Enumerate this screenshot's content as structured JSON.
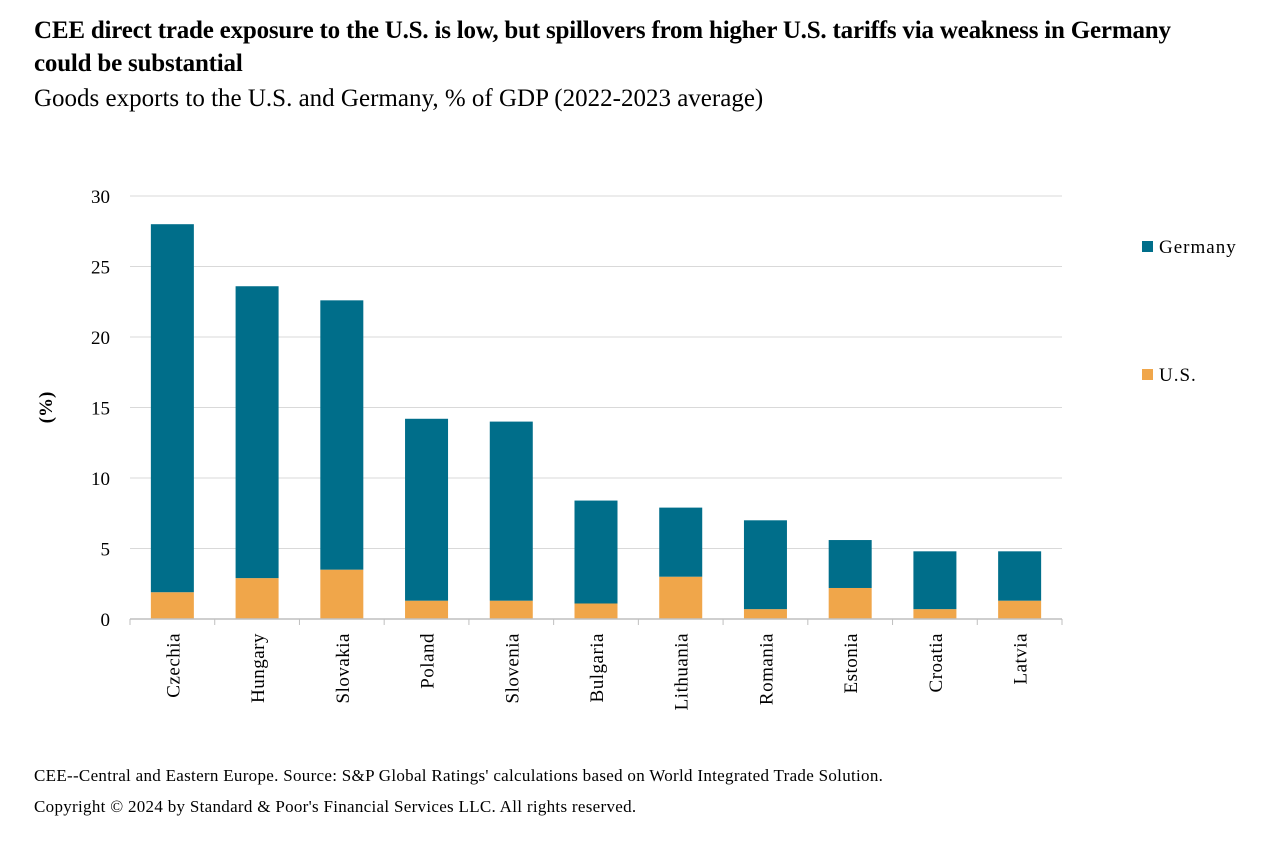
{
  "header": {
    "title": "CEE direct trade exposure to the U.S. is low, but spillovers from higher U.S. tariffs via weakness in Germany could be substantial",
    "subtitle": "Goods exports to the U.S. and Germany, % of GDP (2022-2023 average)"
  },
  "footer": {
    "note": "CEE--Central and Eastern Europe. Source: S&P Global Ratings' calculations based on World Integrated Trade Solution.",
    "copyright": "Copyright © 2024 by Standard & Poor's Financial Services LLC. All rights reserved."
  },
  "chart_data": {
    "type": "bar",
    "stacked": true,
    "title": "CEE direct trade exposure to the U.S. is low, but spillovers from higher U.S. tariffs via weakness in Germany could be substantial",
    "subtitle": "Goods exports to the U.S. and Germany, % of GDP (2022-2023 average)",
    "xlabel": "",
    "ylabel": "(%)",
    "ylim": [
      0,
      30
    ],
    "yticks": [
      0,
      5,
      10,
      15,
      20,
      25,
      30
    ],
    "grid": true,
    "legend_position": "right",
    "categories": [
      "Czechia",
      "Hungary",
      "Slovakia",
      "Poland",
      "Slovenia",
      "Bulgaria",
      "Lithuania",
      "Romania",
      "Estonia",
      "Croatia",
      "Latvia"
    ],
    "series": [
      {
        "name": "U.S.",
        "color": "#F0A64A",
        "values": [
          1.9,
          2.9,
          3.5,
          1.3,
          1.3,
          1.1,
          3.0,
          0.7,
          2.2,
          0.7,
          1.3
        ]
      },
      {
        "name": "Germany",
        "color": "#006E8A",
        "values": [
          26.1,
          20.7,
          19.1,
          12.9,
          12.7,
          7.3,
          4.9,
          6.3,
          3.4,
          4.1,
          3.5
        ]
      }
    ]
  }
}
